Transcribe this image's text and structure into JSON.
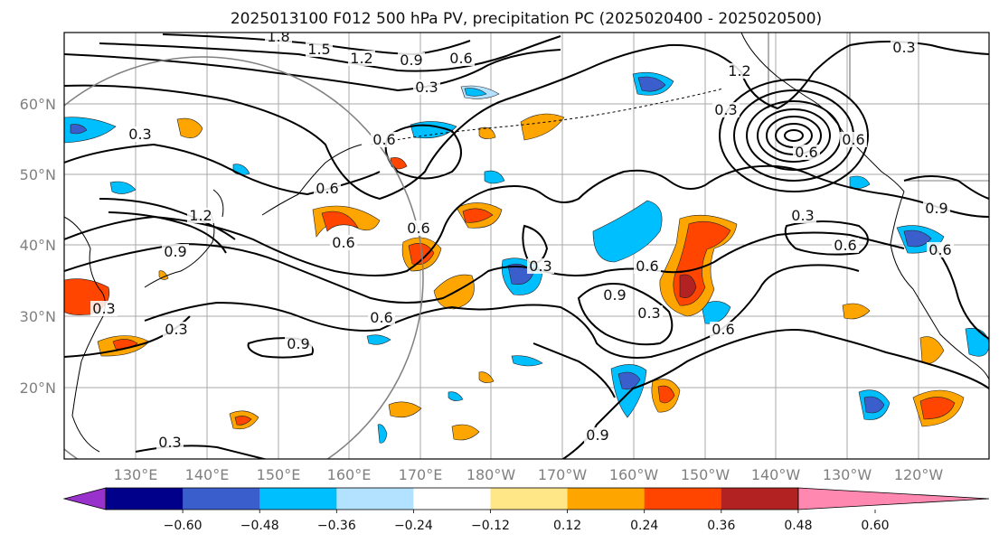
{
  "title": "2025013100 F012 500 hPa PV, precipitation PC (2025020400 - 2025020500)",
  "map": {
    "lon_labels": [
      "130°E",
      "140°E",
      "150°E",
      "160°E",
      "170°E",
      "180°W",
      "170°W",
      "160°W",
      "150°W",
      "140°W",
      "130°W",
      "120°W"
    ],
    "lat_labels": [
      "60°N",
      "50°N",
      "40°N",
      "30°N",
      "20°N"
    ],
    "contour_labels": [
      "1.8",
      "1.5",
      "1.2",
      "0.9",
      "0.6",
      "0.3",
      "0.6",
      "0.3",
      "0.6",
      "1.2",
      "0.9",
      "0.6",
      "0.6",
      "0.3",
      "0.6",
      "0.9",
      "0.3",
      "0.3",
      "0.6",
      "0.9",
      "0.3",
      "0.6",
      "0.9",
      "1.2",
      "0.3",
      "0.3",
      "0.6",
      "0.9",
      "0.6",
      "0.3",
      "0.3",
      "0.6",
      "0.6"
    ]
  },
  "colorbar": {
    "ticks": [
      "−0.60",
      "−0.48",
      "−0.36",
      "−0.24",
      "−0.12",
      "0.12",
      "0.24",
      "0.36",
      "0.48",
      "0.60"
    ],
    "colors": [
      "#9932cc",
      "#00008b",
      "#3a5fcd",
      "#00bfff",
      "#b2e2ff",
      "#ffffff",
      "#ffe787",
      "#ffa500",
      "#ff4500",
      "#b22222",
      "#ff88b0"
    ]
  }
}
